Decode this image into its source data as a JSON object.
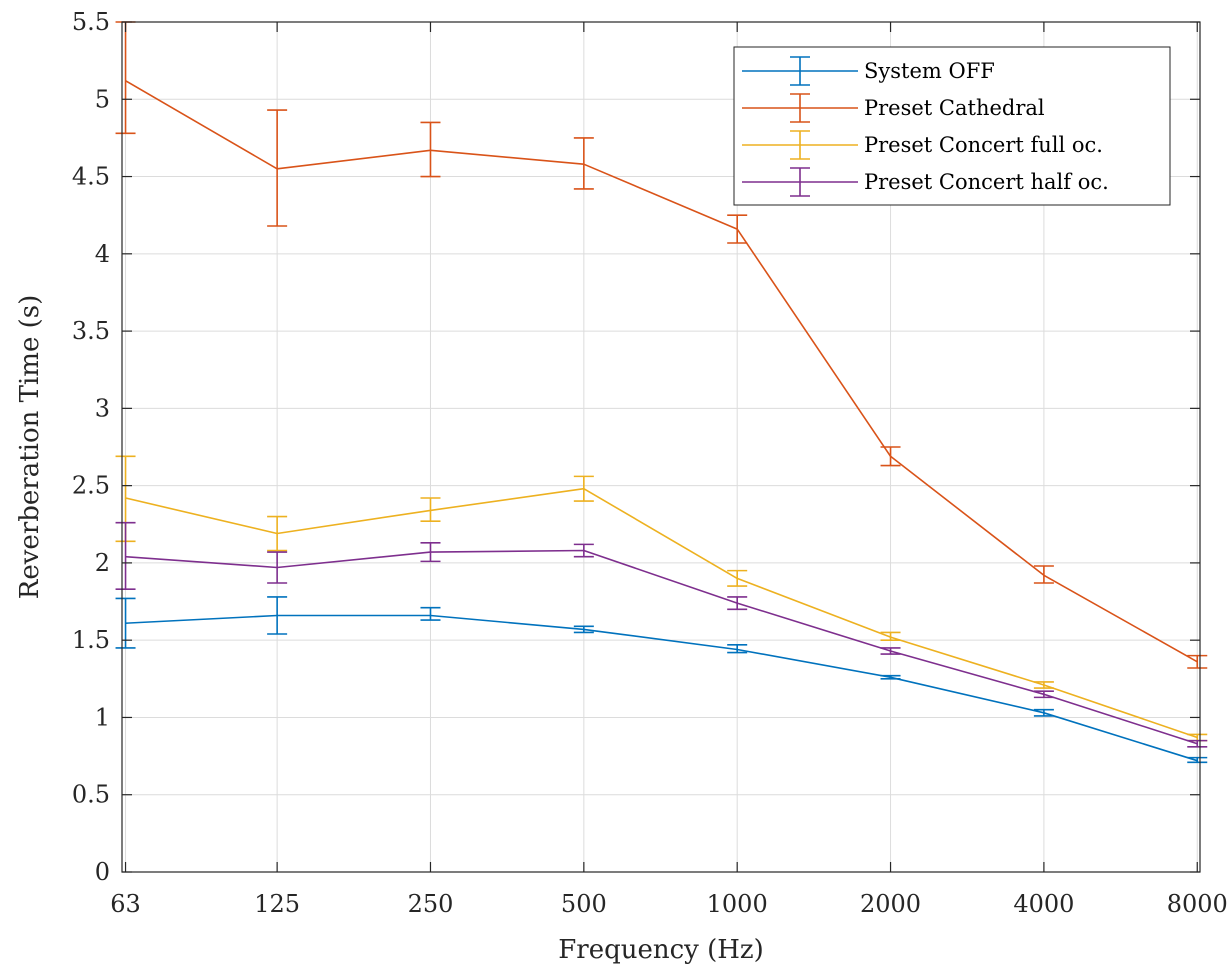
{
  "chart_data": {
    "type": "line",
    "xlabel": "Frequency (Hz)",
    "ylabel": "Reverberation Time (s)",
    "x_scale": "log",
    "grid": true,
    "legend_position": "top-right",
    "ylim": [
      0,
      5.5
    ],
    "x": [
      63,
      125,
      250,
      500,
      1000,
      2000,
      4000,
      8000
    ],
    "x_tick_labels": [
      "63",
      "125",
      "250",
      "500",
      "1000",
      "2000",
      "4000",
      "8000"
    ],
    "y_ticks": [
      0,
      0.5,
      1,
      1.5,
      2,
      2.5,
      3,
      3.5,
      4,
      4.5,
      5,
      5.5
    ],
    "y_tick_labels": [
      "0",
      "0.5",
      "1",
      "1.5",
      "2",
      "2.5",
      "3",
      "3.5",
      "4",
      "4.5",
      "5",
      "5.5"
    ],
    "series": [
      {
        "name": "System OFF",
        "color": "#0072BD",
        "values": [
          1.61,
          1.66,
          1.66,
          1.57,
          1.44,
          1.26,
          1.03,
          0.72
        ],
        "err_low": [
          1.45,
          1.54,
          1.63,
          1.55,
          1.42,
          1.25,
          1.01,
          0.71
        ],
        "err_high": [
          1.77,
          1.78,
          1.71,
          1.59,
          1.47,
          1.27,
          1.05,
          0.74
        ]
      },
      {
        "name": "Preset Cathedral",
        "color": "#D95319",
        "values": [
          5.12,
          4.55,
          4.67,
          4.58,
          4.16,
          2.69,
          1.92,
          1.36
        ],
        "err_low": [
          4.78,
          4.18,
          4.5,
          4.42,
          4.07,
          2.63,
          1.87,
          1.32
        ],
        "err_high": [
          5.5,
          4.93,
          4.85,
          4.75,
          4.25,
          2.75,
          1.98,
          1.4
        ]
      },
      {
        "name": "Preset Concert full oc.",
        "color": "#EDB120",
        "values": [
          2.42,
          2.19,
          2.34,
          2.48,
          1.9,
          1.52,
          1.21,
          0.87
        ],
        "err_low": [
          2.14,
          2.08,
          2.27,
          2.4,
          1.85,
          1.5,
          1.19,
          0.85
        ],
        "err_high": [
          2.69,
          2.3,
          2.42,
          2.56,
          1.95,
          1.55,
          1.23,
          0.89
        ]
      },
      {
        "name": "Preset Concert half oc.",
        "color": "#7E2F8E",
        "values": [
          2.04,
          1.97,
          2.07,
          2.08,
          1.74,
          1.43,
          1.15,
          0.83
        ],
        "err_low": [
          1.83,
          1.87,
          2.01,
          2.04,
          1.7,
          1.41,
          1.13,
          0.81
        ],
        "err_high": [
          2.26,
          2.07,
          2.13,
          2.12,
          1.78,
          1.45,
          1.17,
          0.85
        ]
      }
    ]
  }
}
